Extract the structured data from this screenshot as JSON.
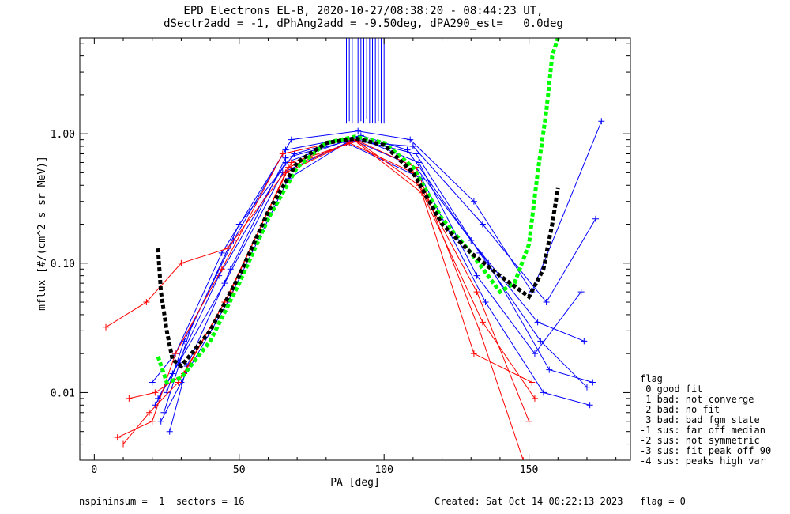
{
  "title_line1": "EPD Electrons EL-B, 2020-10-27/08:38:20 - 08:44:23 UT,",
  "title_line2": "dSectr2add = -1, dPhAng2add = -9.50deg, dPA290_est=   0.0deg",
  "footer_left": "nspininsum =  1  sectors = 16",
  "footer_right": "Created: Sat Oct 14 00:22:13 2023   flag = 0",
  "legend": {
    "title": "flag",
    "items": [
      " 0 good fit",
      " 1 bad: not converge",
      " 2 bad: no fit",
      " 3 bad: bad fgm state",
      "-1 sus: far off median",
      "-2 sus: not symmetric",
      "-3 sus: fit peak off 90",
      "-4 sus: peaks high var"
    ]
  },
  "colors": {
    "blue": "#0000ff",
    "red": "#ff0000",
    "green": "#00ff00",
    "black": "#000000"
  },
  "chart_data": {
    "type": "line",
    "xlabel": "PA [deg]",
    "ylabel": "mflux [#/(cm^2 s sr MeV)]",
    "xlim": [
      -5,
      185
    ],
    "ylim": [
      0.003,
      5.5
    ],
    "yscale": "log",
    "xticks": [
      0,
      50,
      100,
      150
    ],
    "yticks": [
      {
        "value": 0.01,
        "label": "0.01"
      },
      {
        "value": 0.1,
        "label": "0.10"
      },
      {
        "value": 1.0,
        "label": "1.00"
      }
    ],
    "series": [
      {
        "color": "blue",
        "style": "line+cross",
        "x": [
          22,
          29,
          43,
          66,
          89,
          111,
          133,
          154,
          170
        ],
        "y": [
          0.009,
          0.017,
          0.08,
          0.6,
          0.92,
          0.7,
          0.12,
          0.025,
          0.011
        ]
      },
      {
        "color": "blue",
        "style": "line+cross",
        "x": [
          20,
          28,
          44,
          66,
          90,
          112,
          132,
          152,
          168
        ],
        "y": [
          0.012,
          0.02,
          0.12,
          0.75,
          0.95,
          0.6,
          0.08,
          0.02,
          0.06
        ]
      },
      {
        "color": "blue",
        "style": "line+cross",
        "x": [
          23,
          30,
          46,
          67,
          88,
          110,
          134,
          156,
          173
        ],
        "y": [
          0.006,
          0.012,
          0.05,
          0.45,
          0.88,
          0.8,
          0.2,
          0.05,
          0.22
        ]
      },
      {
        "color": "blue",
        "style": "line+cross",
        "x": [
          25,
          31,
          48,
          68,
          91,
          109,
          131,
          151,
          175
        ],
        "y": [
          0.01,
          0.025,
          0.15,
          0.9,
          1.05,
          0.9,
          0.3,
          0.06,
          1.25
        ]
      },
      {
        "color": "blue",
        "style": "line+cross",
        "x": [
          21,
          27,
          45,
          65,
          87,
          113,
          135,
          155,
          171
        ],
        "y": [
          0.008,
          0.014,
          0.07,
          0.5,
          0.85,
          0.45,
          0.05,
          0.01,
          0.008
        ]
      },
      {
        "color": "blue",
        "style": "line+cross",
        "x": [
          24,
          33,
          50,
          69,
          92,
          108,
          130,
          153,
          169
        ],
        "y": [
          0.007,
          0.03,
          0.2,
          0.7,
          0.97,
          0.75,
          0.15,
          0.035,
          0.025
        ]
      },
      {
        "color": "blue",
        "style": "line+cross",
        "x": [
          26,
          32,
          47,
          66,
          89,
          111,
          136,
          157,
          172
        ],
        "y": [
          0.005,
          0.016,
          0.09,
          0.65,
          0.9,
          0.55,
          0.1,
          0.015,
          0.012
        ]
      },
      {
        "color": "red",
        "style": "line+cross",
        "x": [
          4,
          18,
          30,
          46,
          67,
          88,
          110,
          132,
          150
        ],
        "y": [
          0.032,
          0.05,
          0.1,
          0.13,
          0.55,
          0.85,
          0.5,
          0.06,
          0.006
        ]
      },
      {
        "color": "red",
        "style": "line+cross",
        "x": [
          10,
          19,
          29,
          47,
          66,
          90,
          112,
          134,
          152
        ],
        "y": [
          0.004,
          0.007,
          0.012,
          0.06,
          0.5,
          0.9,
          0.4,
          0.035,
          0.009
        ]
      },
      {
        "color": "red",
        "style": "line+cross",
        "x": [
          12,
          21,
          31,
          45,
          68,
          91,
          111,
          133,
          148
        ],
        "y": [
          0.009,
          0.01,
          0.014,
          0.05,
          0.6,
          0.88,
          0.55,
          0.03,
          0.003
        ]
      },
      {
        "color": "red",
        "style": "line+cross",
        "x": [
          8,
          20,
          28,
          44,
          65,
          89,
          113,
          131,
          151
        ],
        "y": [
          0.0045,
          0.006,
          0.02,
          0.09,
          0.7,
          0.92,
          0.35,
          0.02,
          0.012
        ]
      },
      {
        "color": "green",
        "style": "dashed",
        "x": [
          22,
          25,
          30,
          40,
          50,
          60,
          70,
          80,
          90,
          100,
          110,
          120,
          130,
          140,
          145,
          150,
          153,
          156,
          158,
          160
        ],
        "y": [
          0.019,
          0.012,
          0.013,
          0.025,
          0.07,
          0.22,
          0.55,
          0.85,
          0.95,
          0.85,
          0.55,
          0.22,
          0.12,
          0.06,
          0.07,
          0.14,
          0.5,
          1.5,
          4.0,
          5.5
        ]
      },
      {
        "color": "black",
        "style": "dashed",
        "x": [
          22,
          23,
          25,
          27,
          30,
          40,
          50,
          60,
          70,
          80,
          90,
          100,
          110,
          120,
          130,
          140,
          150,
          155,
          158,
          160
        ],
        "y": [
          0.13,
          0.06,
          0.03,
          0.018,
          0.016,
          0.03,
          0.08,
          0.25,
          0.6,
          0.85,
          0.92,
          0.82,
          0.5,
          0.2,
          0.12,
          0.08,
          0.055,
          0.09,
          0.2,
          0.38
        ]
      },
      {
        "color": "blue",
        "style": "spikes",
        "x": [
          87,
          88,
          89,
          90,
          91,
          92,
          93,
          94,
          95,
          96,
          97,
          98,
          99,
          100
        ],
        "y": [
          1.2,
          1.25,
          1.2,
          1.3,
          1.2,
          1.25,
          1.2,
          1.3,
          1.2,
          1.22,
          1.2,
          1.25,
          1.2,
          1.2
        ]
      }
    ]
  }
}
